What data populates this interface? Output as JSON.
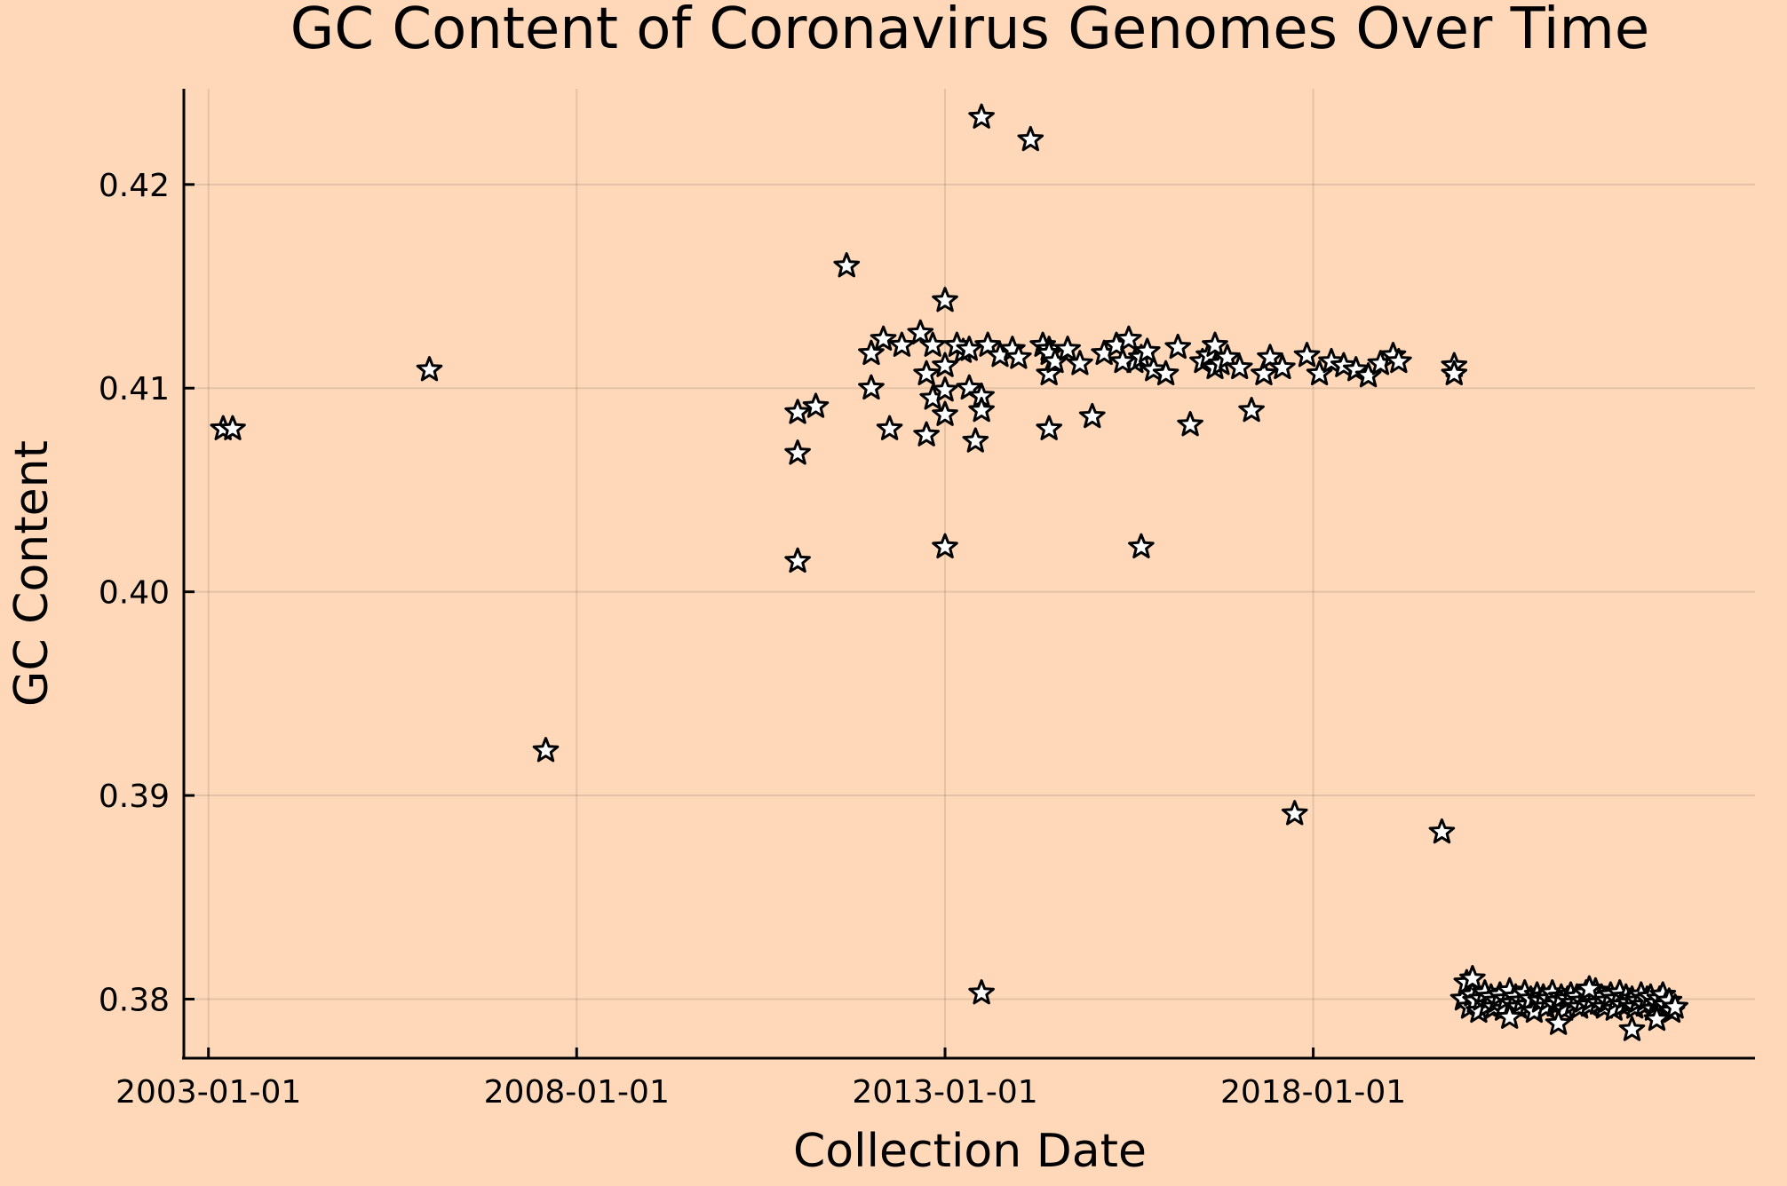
{
  "chart_data": {
    "type": "scatter",
    "title": "GC Content of Coronavirus Genomes Over Time",
    "xlabel": "Collection Date",
    "ylabel": "GC Content",
    "x_type": "date",
    "xlim": [
      "2002-09-01",
      "2024-01-01"
    ],
    "ylim": [
      0.3771,
      0.4247
    ],
    "x_ticks": [
      "2003-01-01",
      "2008-01-01",
      "2013-01-01",
      "2018-01-01"
    ],
    "y_ticks": [
      0.38,
      0.39,
      0.4,
      0.41,
      0.42
    ],
    "y_tick_labels": [
      "0.38",
      "0.39",
      "0.40",
      "0.41",
      "0.42"
    ],
    "grid": true,
    "legend": "none",
    "marker": "star",
    "marker_color": "#ffffff",
    "background": "#fed8b8",
    "x": [
      "2003-03-15",
      "2003-05-01",
      "2006-01-01",
      "2007-08-01",
      "2011-01-01",
      "2011-01-01",
      "2011-01-01",
      "2011-04-01",
      "2011-09-01",
      "2012-01-01",
      "2012-01-01",
      "2012-03-01",
      "2012-04-01",
      "2012-06-01",
      "2012-09-01",
      "2012-10-01",
      "2012-10-01",
      "2012-11-01",
      "2012-11-01",
      "2013-01-01",
      "2013-01-01",
      "2013-01-01",
      "2013-01-01",
      "2013-01-01",
      "2013-04-01",
      "2013-05-01",
      "2013-06-01",
      "2013-07-01",
      "2013-07-01",
      "2013-07-01",
      "2013-07-01",
      "2013-03-01",
      "2013-05-01",
      "2013-08-01",
      "2013-10-01",
      "2013-12-01",
      "2014-01-01",
      "2014-03-01",
      "2014-05-01",
      "2014-06-01",
      "2014-06-01",
      "2014-06-01",
      "2014-06-01",
      "2014-07-01",
      "2014-09-01",
      "2014-11-01",
      "2015-01-01",
      "2015-03-01",
      "2015-05-01",
      "2015-07-01",
      "2015-08-01",
      "2015-09-01",
      "2015-09-01",
      "2015-11-01",
      "2016-01-01",
      "2015-06-01",
      "2015-10-01",
      "2016-03-01",
      "2016-05-01",
      "2016-07-01",
      "2016-08-01",
      "2016-09-01",
      "2016-09-01",
      "2016-10-01",
      "2016-11-01",
      "2017-01-01",
      "2017-03-01",
      "2017-05-01",
      "2017-06-01",
      "2017-08-01",
      "2017-10-01",
      "2017-12-01",
      "2018-02-01",
      "2018-04-01",
      "2018-06-01",
      "2018-08-01",
      "2018-10-01",
      "2018-12-01",
      "2019-02-01",
      "2019-03-01",
      "2019-10-01",
      "2019-12-01",
      "2019-12-01",
      "2020-01-15",
      "2020-02-01",
      "2020-02-15",
      "2020-03-01",
      "2020-03-15",
      "2020-04-01",
      "2020-04-15",
      "2020-05-01",
      "2020-05-15",
      "2020-06-01",
      "2020-06-15",
      "2020-07-01",
      "2020-07-15",
      "2020-08-01",
      "2020-08-15",
      "2020-09-01",
      "2020-09-15",
      "2020-10-01",
      "2020-10-15",
      "2020-11-01",
      "2020-11-15",
      "2020-12-01",
      "2020-12-15",
      "2021-01-01",
      "2021-01-15",
      "2021-02-01",
      "2021-02-15",
      "2021-03-01",
      "2021-03-15",
      "2021-04-01",
      "2021-04-15",
      "2021-05-01",
      "2021-05-15",
      "2021-06-01",
      "2021-06-15",
      "2021-07-01",
      "2021-07-15",
      "2021-08-01",
      "2021-08-15",
      "2021-09-01",
      "2021-09-15",
      "2021-10-01",
      "2021-10-15",
      "2021-11-01",
      "2021-11-15",
      "2021-12-01",
      "2021-12-15",
      "2022-01-01",
      "2022-01-15",
      "2022-02-01",
      "2022-02-15",
      "2022-03-01",
      "2022-03-15",
      "2022-04-01",
      "2022-04-15",
      "2022-05-01",
      "2022-05-15",
      "2022-06-01",
      "2022-06-15",
      "2022-07-01",
      "2022-07-15",
      "2022-08-01",
      "2022-08-15",
      "2022-09-01",
      "2022-09-15",
      "2022-10-01",
      "2022-10-15",
      "2022-11-01",
      "2022-11-15",
      "2022-12-01",
      "2020-03-01",
      "2020-09-01",
      "2021-05-01",
      "2021-10-01",
      "2022-05-01",
      "2022-09-01"
    ],
    "y": [
      0.408,
      0.408,
      0.4109,
      0.3922,
      0.4088,
      0.4068,
      0.4015,
      0.4091,
      0.416,
      0.4117,
      0.41,
      0.4124,
      0.408,
      0.4121,
      0.4127,
      0.4077,
      0.4107,
      0.4095,
      0.4121,
      0.4143,
      0.4111,
      0.4099,
      0.4087,
      0.4022,
      0.4118,
      0.41,
      0.4074,
      0.4233,
      0.4096,
      0.4089,
      0.3803,
      0.4121,
      0.4119,
      0.4121,
      0.4116,
      0.4119,
      0.4115,
      0.4222,
      0.4121,
      0.4119,
      0.4107,
      0.408,
      0.4117,
      0.4113,
      0.4119,
      0.4112,
      0.4086,
      0.4117,
      0.4121,
      0.4124,
      0.4113,
      0.4022,
      0.4115,
      0.4109,
      0.4107,
      0.4113,
      0.4118,
      0.412,
      0.4082,
      0.4113,
      0.4116,
      0.4121,
      0.411,
      0.4112,
      0.4115,
      0.411,
      0.4089,
      0.4107,
      0.4115,
      0.411,
      0.3891,
      0.4116,
      0.4107,
      0.4113,
      0.4111,
      0.4109,
      0.4106,
      0.4112,
      0.4116,
      0.4113,
      0.3882,
      0.4111,
      0.4107,
      0.38,
      0.3808,
      0.3796,
      0.3802,
      0.3799,
      0.3794,
      0.38,
      0.3803,
      0.3797,
      0.3801,
      0.3796,
      0.3799,
      0.3802,
      0.3795,
      0.38,
      0.3804,
      0.3798,
      0.3801,
      0.3796,
      0.3799,
      0.3803,
      0.3797,
      0.38,
      0.3794,
      0.3802,
      0.3799,
      0.3801,
      0.3796,
      0.38,
      0.3803,
      0.3797,
      0.3799,
      0.3801,
      0.3795,
      0.38,
      0.3802,
      0.3798,
      0.3801,
      0.3796,
      0.3799,
      0.3803,
      0.3797,
      0.38,
      0.3804,
      0.3798,
      0.3801,
      0.3796,
      0.3799,
      0.3802,
      0.3795,
      0.38,
      0.3803,
      0.3797,
      0.3801,
      0.3798,
      0.38,
      0.3796,
      0.3799,
      0.3802,
      0.3797,
      0.38,
      0.3801,
      0.3795,
      0.3798,
      0.38,
      0.3802,
      0.3797,
      0.3799,
      0.3794,
      0.3796,
      0.381,
      0.3791,
      0.3788,
      0.3805,
      0.3785,
      0.379
    ]
  }
}
